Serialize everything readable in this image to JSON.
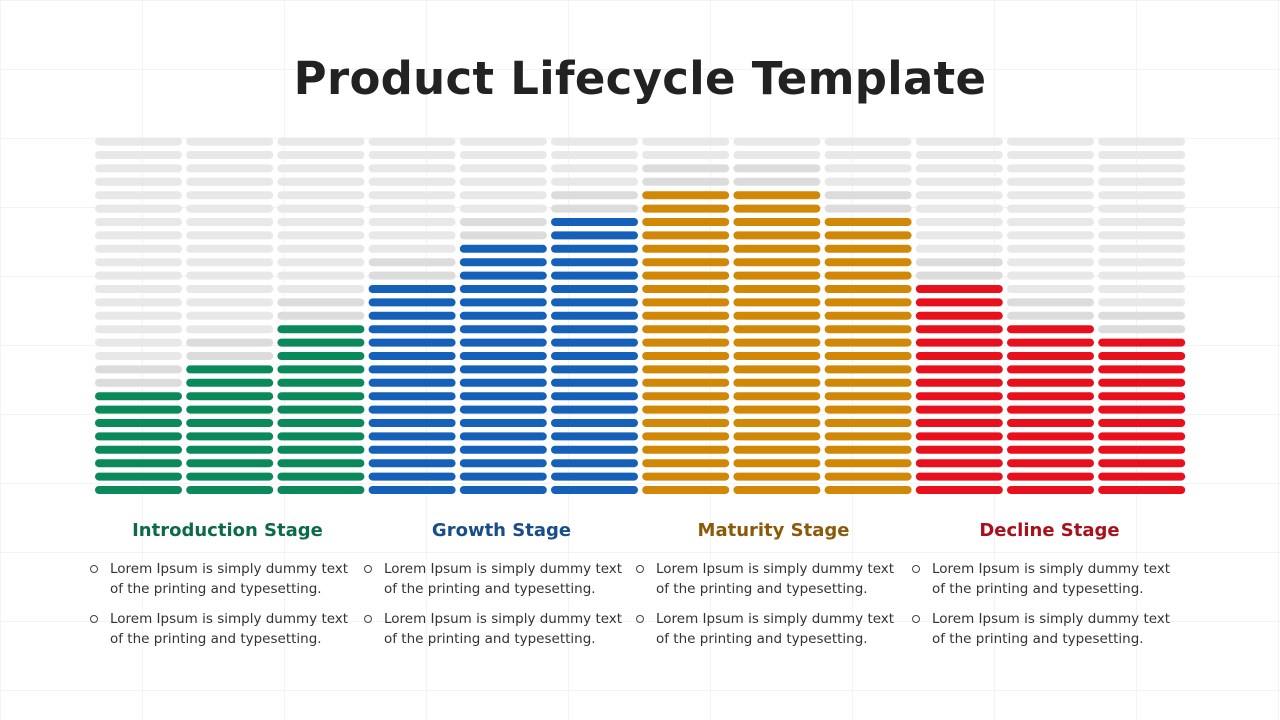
{
  "title": "Product Lifecycle Template",
  "colors": {
    "introduction": "#0a8a5a",
    "growth": "#1560b8",
    "maturity": "#d08806",
    "decline": "#e8101c",
    "empty": "#e8e8e8",
    "empty_dark": "#dcdcdc"
  },
  "chart_data": {
    "type": "bar",
    "total_segments": 27,
    "columns": [
      {
        "stage": "introduction",
        "filled": 8
      },
      {
        "stage": "introduction",
        "filled": 10
      },
      {
        "stage": "introduction",
        "filled": 13
      },
      {
        "stage": "growth",
        "filled": 16
      },
      {
        "stage": "growth",
        "filled": 19
      },
      {
        "stage": "growth",
        "filled": 21
      },
      {
        "stage": "maturity",
        "filled": 23
      },
      {
        "stage": "maturity",
        "filled": 23
      },
      {
        "stage": "maturity",
        "filled": 21
      },
      {
        "stage": "decline",
        "filled": 16
      },
      {
        "stage": "decline",
        "filled": 13
      },
      {
        "stage": "decline",
        "filled": 12
      }
    ]
  },
  "stages": [
    {
      "title": "Introduction Stage",
      "color": "#0b6b48",
      "bullets": [
        "Lorem Ipsum is simply dummy text of the printing and typesetting.",
        "Lorem Ipsum is simply dummy text of the printing and typesetting."
      ]
    },
    {
      "title": "Growth Stage",
      "color": "#184c8a",
      "bullets": [
        "Lorem Ipsum is simply dummy text of the printing and typesetting.",
        "Lorem Ipsum is simply dummy text of the printing and typesetting."
      ]
    },
    {
      "title": "Maturity Stage",
      "color": "#8a5a08",
      "bullets": [
        "Lorem Ipsum is simply dummy text of the printing and typesetting.",
        "Lorem Ipsum is simply dummy text of the printing and typesetting."
      ]
    },
    {
      "title": "Decline Stage",
      "color": "#a8101a",
      "bullets": [
        "Lorem Ipsum is simply dummy text of the printing and typesetting.",
        "Lorem Ipsum is simply dummy text of the printing and typesetting."
      ]
    }
  ]
}
